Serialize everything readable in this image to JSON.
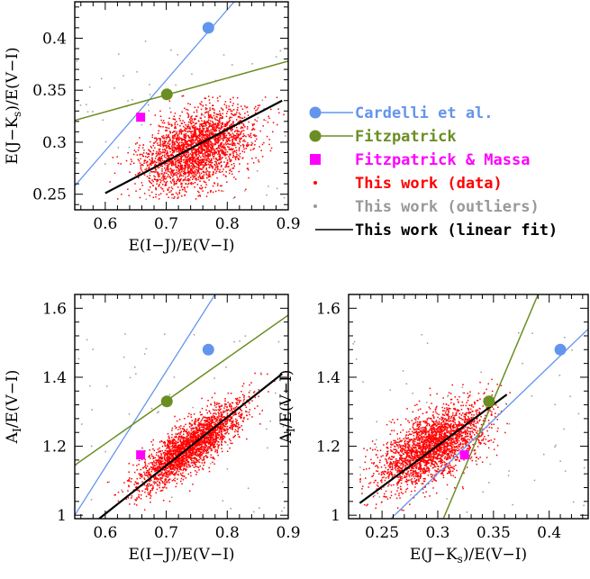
{
  "chart_data": [
    {
      "type": "scatter",
      "id": "top-left",
      "xlabel": "E(I−J)/E(V−I)",
      "ylabel": "E(J−K",
      "ylabel_sub": "s",
      "ylabel_tail": ")/E(V−I)",
      "xlim": [
        0.55,
        0.9
      ],
      "ylim": [
        0.235,
        0.435
      ],
      "xticks": [
        0.6,
        0.7,
        0.8,
        0.9
      ],
      "xticklabels": [
        "0.6",
        "0.7",
        "0.8",
        "0.9"
      ],
      "yticks": [
        0.25,
        0.3,
        0.35,
        0.4
      ],
      "yticklabels": [
        "0.25",
        "0.3",
        "0.35",
        "0.4"
      ],
      "cloud": {
        "cx": 0.75,
        "cy": 0.293,
        "sx": 0.045,
        "sy": 0.02,
        "rho": 0.45,
        "n": 2600,
        "xmin": 0.6,
        "xmax": 0.9,
        "ymin": 0.245,
        "ymax": 0.345
      },
      "points": {
        "cardelli": [
          0.769,
          0.41
        ],
        "fitzpatrick": [
          0.701,
          0.346
        ],
        "fitz_massa": [
          0.658,
          0.324
        ]
      },
      "lines": {
        "cardelli": [
          [
            0.55,
            0.258
          ],
          [
            0.86,
            0.468
          ]
        ],
        "fitzpatrick": [
          [
            0.55,
            0.321
          ],
          [
            0.9,
            0.378
          ]
        ],
        "fit": [
          [
            0.6,
            0.251
          ],
          [
            0.89,
            0.34
          ]
        ]
      }
    },
    {
      "type": "scatter",
      "id": "bottom-left",
      "xlabel": "E(I−J)/E(V−I)",
      "ylabel": "A",
      "ylabel_sub": "I",
      "ylabel_tail": "/E(V−I)",
      "xlim": [
        0.55,
        0.9
      ],
      "ylim": [
        0.99,
        1.64
      ],
      "xticks": [
        0.6,
        0.7,
        0.8,
        0.9
      ],
      "xticklabels": [
        "0.6",
        "0.7",
        "0.8",
        "0.9"
      ],
      "yticks": [
        1.0,
        1.2,
        1.4,
        1.6
      ],
      "yticklabels": [
        "1",
        "1.2",
        "1.4",
        "1.6"
      ],
      "cloud": {
        "cx": 0.74,
        "cy": 1.2,
        "sx": 0.042,
        "sy": 0.06,
        "rho": 0.82,
        "n": 2600,
        "xmin": 0.6,
        "xmax": 0.9,
        "ymin": 1.0,
        "ymax": 1.42
      },
      "points": {
        "cardelli": [
          0.769,
          1.48
        ],
        "fitzpatrick": [
          0.701,
          1.33
        ],
        "fitz_massa": [
          0.658,
          1.175
        ]
      },
      "lines": {
        "cardelli": [
          [
            0.55,
            1.0
          ],
          [
            0.78,
            1.64
          ]
        ],
        "fitzpatrick": [
          [
            0.55,
            1.145
          ],
          [
            0.9,
            1.58
          ]
        ],
        "fit": [
          [
            0.59,
            0.99
          ],
          [
            0.89,
            1.41
          ]
        ]
      }
    },
    {
      "type": "scatter",
      "id": "bottom-right",
      "xlabel": "E(J−K",
      "xlabel_sub": "s",
      "xlabel_tail": ")/E(V−I)",
      "ylabel": "A",
      "ylabel_sub": "I",
      "ylabel_tail": "/E(V−I)",
      "xlim": [
        0.22,
        0.435
      ],
      "ylim": [
        0.99,
        1.64
      ],
      "xticks": [
        0.25,
        0.3,
        0.35,
        0.4
      ],
      "xticklabels": [
        "0.25",
        "0.3",
        "0.35",
        "0.4"
      ],
      "yticks": [
        1.0,
        1.2,
        1.4,
        1.6
      ],
      "yticklabels": [
        "1",
        "1.2",
        "1.4",
        "1.6"
      ],
      "cloud": {
        "cx": 0.295,
        "cy": 1.2,
        "sx": 0.024,
        "sy": 0.06,
        "rho": 0.6,
        "n": 2600,
        "xmin": 0.23,
        "xmax": 0.37,
        "ymin": 1.0,
        "ymax": 1.42
      },
      "points": {
        "cardelli": [
          0.41,
          1.48
        ],
        "fitzpatrick": [
          0.346,
          1.33
        ],
        "fitz_massa": [
          0.324,
          1.175
        ]
      },
      "lines": {
        "cardelli": [
          [
            0.258,
            0.99
          ],
          [
            0.435,
            1.54
          ]
        ],
        "fitzpatrick": [
          [
            0.305,
            0.99
          ],
          [
            0.39,
            1.64
          ]
        ],
        "fit": [
          [
            0.23,
            1.035
          ],
          [
            0.362,
            1.35
          ]
        ]
      }
    }
  ],
  "legend": {
    "cardelli": "Cardelli et al.",
    "fitzpatrick": "Fitzpatrick",
    "fitz_massa": "Fitzpatrick & Massa",
    "data": "This work (data)",
    "outliers": "This work (outliers)",
    "fit": "This work (linear fit)"
  },
  "colors": {
    "cardelli": "#6495ed",
    "fitzpatrick": "#6b8e23",
    "fitz_massa": "#ff00ff",
    "data": "#ff0000",
    "outliers": "#999999",
    "fit": "#000000"
  }
}
